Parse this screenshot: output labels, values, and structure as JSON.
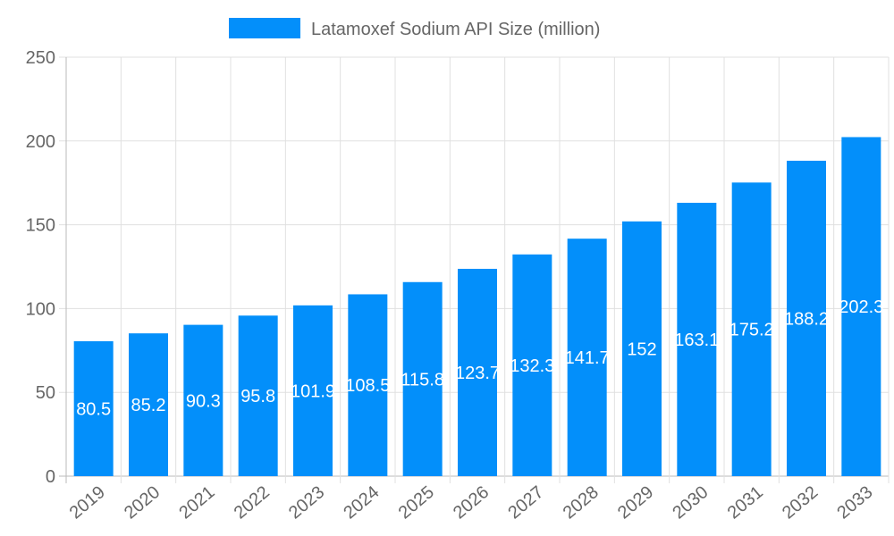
{
  "chart_data": {
    "type": "bar",
    "title": "",
    "xlabel": "",
    "ylabel": "",
    "legend": {
      "position": "top",
      "entries": [
        "Latamoxef Sodium API Size (million)"
      ]
    },
    "categories": [
      "2019",
      "2020",
      "2021",
      "2022",
      "2023",
      "2024",
      "2025",
      "2026",
      "2027",
      "2028",
      "2029",
      "2030",
      "2031",
      "2032",
      "2033"
    ],
    "series": [
      {
        "name": "Latamoxef Sodium API Size (million)",
        "color": "#038ffa",
        "values": [
          80.5,
          85.2,
          90.3,
          95.8,
          101.9,
          108.5,
          115.8,
          123.7,
          132.3,
          141.7,
          152,
          163.1,
          175.2,
          188.2,
          202.3
        ]
      }
    ],
    "ylim": [
      0,
      250
    ],
    "yticks": [
      0,
      50,
      100,
      150,
      200,
      250
    ],
    "grid": true,
    "data_labels": true
  }
}
